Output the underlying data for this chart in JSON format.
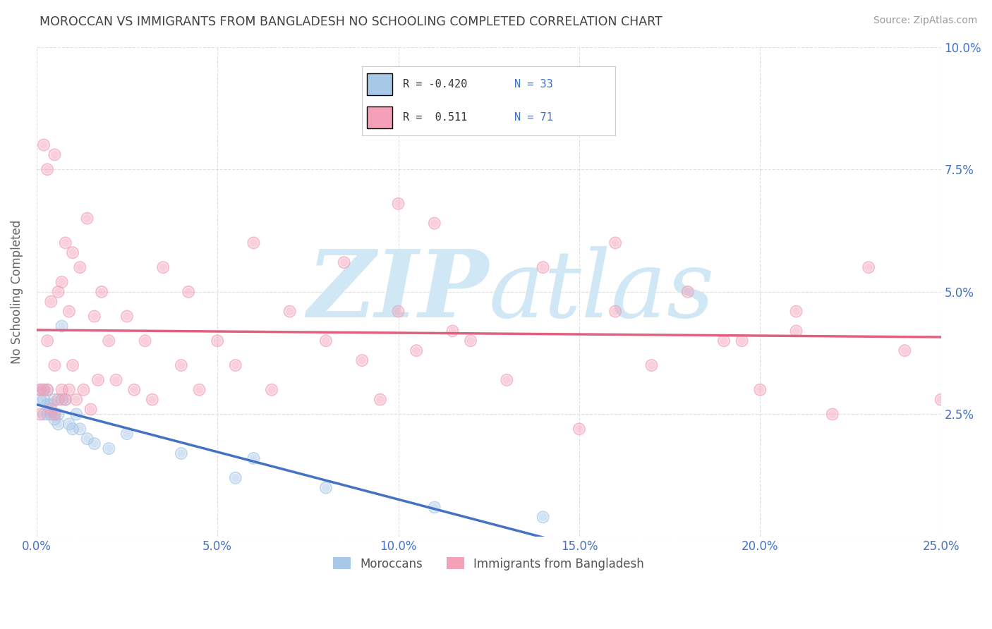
{
  "title": "MOROCCAN VS IMMIGRANTS FROM BANGLADESH NO SCHOOLING COMPLETED CORRELATION CHART",
  "source": "Source: ZipAtlas.com",
  "ylabel": "No Schooling Completed",
  "legend_moroccan": "Moroccans",
  "legend_bangladesh": "Immigrants from Bangladesh",
  "r_moroccan": -0.42,
  "n_moroccan": 33,
  "r_bangladesh": 0.511,
  "n_bangladesh": 71,
  "xlim": [
    0.0,
    0.25
  ],
  "ylim": [
    0.0,
    0.1
  ],
  "xticks": [
    0.0,
    0.05,
    0.1,
    0.15,
    0.2,
    0.25
  ],
  "yticks": [
    0.0,
    0.025,
    0.05,
    0.075,
    0.1
  ],
  "xticklabels": [
    "0.0%",
    "5.0%",
    "10.0%",
    "15.0%",
    "20.0%",
    "25.0%"
  ],
  "yticklabels_right": [
    "",
    "2.5%",
    "5.0%",
    "7.5%",
    "10.0%"
  ],
  "color_moroccan": "#a8c8e8",
  "color_bangladesh": "#f4a0b8",
  "line_color_moroccan": "#4472c4",
  "line_color_bangladesh": "#e06080",
  "watermark_zip": "ZIP",
  "watermark_atlas": "atlas",
  "watermark_color": "#d0e8f5",
  "background_color": "#ffffff",
  "grid_color": "#cccccc",
  "title_color": "#404040",
  "axis_label_color": "#4472c4",
  "moroccan_x": [
    0.001,
    0.001,
    0.002,
    0.002,
    0.002,
    0.003,
    0.003,
    0.003,
    0.004,
    0.004,
    0.004,
    0.005,
    0.005,
    0.005,
    0.006,
    0.006,
    0.007,
    0.007,
    0.008,
    0.009,
    0.01,
    0.011,
    0.012,
    0.014,
    0.016,
    0.02,
    0.025,
    0.04,
    0.055,
    0.06,
    0.08,
    0.11,
    0.14
  ],
  "moroccan_y": [
    0.028,
    0.03,
    0.028,
    0.03,
    0.025,
    0.025,
    0.027,
    0.03,
    0.025,
    0.027,
    0.025,
    0.024,
    0.028,
    0.025,
    0.025,
    0.023,
    0.028,
    0.043,
    0.028,
    0.023,
    0.022,
    0.025,
    0.022,
    0.02,
    0.019,
    0.018,
    0.021,
    0.017,
    0.012,
    0.016,
    0.01,
    0.006,
    0.004
  ],
  "bangladesh_x": [
    0.001,
    0.001,
    0.002,
    0.002,
    0.003,
    0.003,
    0.003,
    0.004,
    0.004,
    0.005,
    0.005,
    0.005,
    0.006,
    0.006,
    0.007,
    0.007,
    0.008,
    0.008,
    0.009,
    0.009,
    0.01,
    0.01,
    0.011,
    0.012,
    0.013,
    0.014,
    0.015,
    0.016,
    0.017,
    0.018,
    0.02,
    0.022,
    0.025,
    0.027,
    0.03,
    0.032,
    0.035,
    0.04,
    0.042,
    0.045,
    0.05,
    0.055,
    0.06,
    0.065,
    0.07,
    0.08,
    0.085,
    0.09,
    0.095,
    0.1,
    0.105,
    0.11,
    0.12,
    0.13,
    0.14,
    0.15,
    0.16,
    0.17,
    0.18,
    0.19,
    0.2,
    0.21,
    0.22,
    0.23,
    0.24,
    0.25,
    0.1,
    0.115,
    0.16,
    0.195,
    0.21
  ],
  "bangladesh_y": [
    0.03,
    0.025,
    0.03,
    0.08,
    0.03,
    0.04,
    0.075,
    0.026,
    0.048,
    0.025,
    0.035,
    0.078,
    0.028,
    0.05,
    0.03,
    0.052,
    0.028,
    0.06,
    0.03,
    0.046,
    0.035,
    0.058,
    0.028,
    0.055,
    0.03,
    0.065,
    0.026,
    0.045,
    0.032,
    0.05,
    0.04,
    0.032,
    0.045,
    0.03,
    0.04,
    0.028,
    0.055,
    0.035,
    0.05,
    0.03,
    0.04,
    0.035,
    0.06,
    0.03,
    0.046,
    0.04,
    0.056,
    0.036,
    0.028,
    0.046,
    0.038,
    0.064,
    0.04,
    0.032,
    0.055,
    0.022,
    0.06,
    0.035,
    0.05,
    0.04,
    0.03,
    0.046,
    0.025,
    0.055,
    0.038,
    0.028,
    0.068,
    0.042,
    0.046,
    0.04,
    0.042
  ]
}
